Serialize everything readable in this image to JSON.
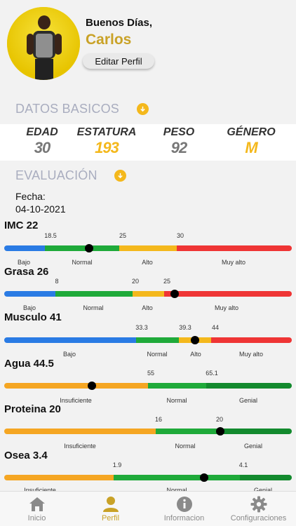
{
  "header": {
    "greeting": "Buenos Días,",
    "name": "Carlos",
    "edit_label": "Editar Perfil"
  },
  "basics": {
    "title": "DATOS BASICOS",
    "items": [
      {
        "label": "EDAD",
        "value": "30",
        "color": "#777777"
      },
      {
        "label": "ESTATURA",
        "value": "193",
        "color": "#f4b81c"
      },
      {
        "label": "PESO",
        "value": "92",
        "color": "#777777"
      },
      {
        "label": "GÉNERO",
        "value": "M",
        "color": "#f4b81c"
      }
    ]
  },
  "evaluation": {
    "title": "EVALUACIÓN",
    "date_label": "Fecha:",
    "date_value": "04-10-2021",
    "metrics": [
      {
        "title": "IMC 22",
        "ticks": [
          "18.5",
          "25",
          "30"
        ],
        "zones": [
          "Bajo",
          "Normal",
          "Alto",
          "Muy alto"
        ]
      },
      {
        "title": "Grasa 26",
        "ticks": [
          "8",
          "20",
          "25"
        ],
        "zones": [
          "Bajo",
          "Normal",
          "Alto",
          "Muy alto"
        ]
      },
      {
        "title": "Musculo 41",
        "ticks": [
          "33.3",
          "39.3",
          "44"
        ],
        "zones": [
          "Bajo",
          "Normal",
          "Alto",
          "Muy alto"
        ]
      },
      {
        "title": "Agua 44.5",
        "ticks": [
          "55",
          "65.1"
        ],
        "zones": [
          "Insuficiente",
          "Normal",
          "Genial"
        ]
      },
      {
        "title": "Proteina 20",
        "ticks": [
          "16",
          "20"
        ],
        "zones": [
          "Insuficiente",
          "Normal",
          "Genial"
        ]
      },
      {
        "title": "Osea 3.4",
        "ticks": [
          "1.9",
          "4.1"
        ],
        "zones": [
          "Insuficiente",
          "Normal",
          "Genial"
        ]
      }
    ]
  },
  "tabs": [
    {
      "label": "Inicio",
      "icon": "home-icon",
      "active": false
    },
    {
      "label": "Perfil",
      "icon": "person-icon",
      "active": true
    },
    {
      "label": "Informacion",
      "icon": "info-icon",
      "active": false
    },
    {
      "label": "Configuraciones",
      "icon": "gear-icon",
      "active": false
    }
  ],
  "colors": {
    "accent": "#c9a227",
    "blue": "#2a7be4",
    "green": "#1faa3a",
    "yellow": "#f4b81c",
    "red": "#ef3535",
    "orange": "#f5a623",
    "darkgreen": "#138a2e"
  }
}
